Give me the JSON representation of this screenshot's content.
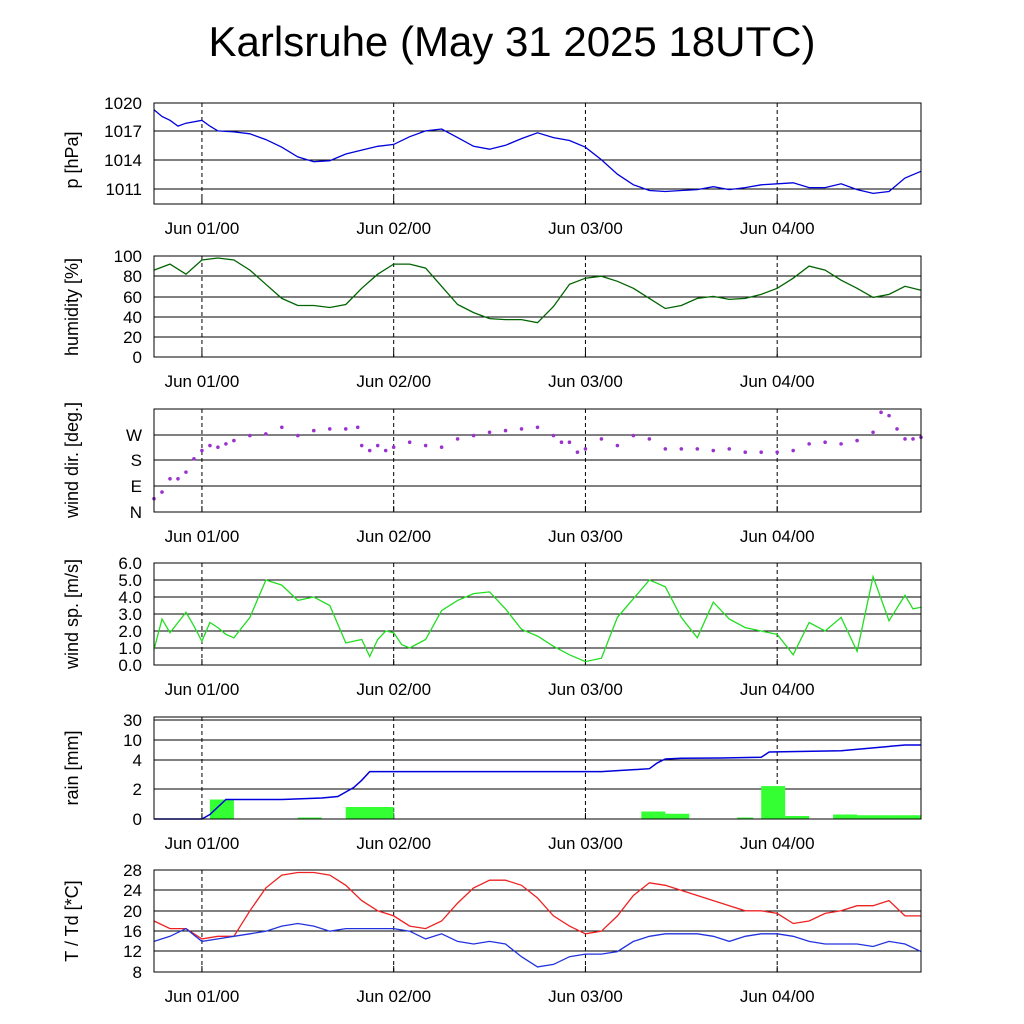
{
  "title": "Karlsruhe (May 31 2025 18UTC)",
  "chart_data": [
    {
      "id": "pressure",
      "type": "line",
      "ylabel": "p [hPa]",
      "color": "#0000dd",
      "yticks": [
        "1020",
        "1017",
        "1014",
        "1011"
      ],
      "ylim": [
        1009.5,
        1020
      ],
      "xlim": [
        -6,
        90
      ],
      "xtick_labels": [
        "Jun 01/00",
        "Jun 02/00",
        "Jun 03/00",
        "Jun 04/00"
      ],
      "x": [
        -6,
        -5,
        -4,
        -3,
        -2,
        0,
        1,
        2,
        4,
        6,
        8,
        10,
        12,
        14,
        16,
        18,
        20,
        22,
        24,
        26,
        28,
        30,
        32,
        34,
        36,
        38,
        40,
        42,
        44,
        46,
        48,
        50,
        52,
        54,
        56,
        58,
        60,
        62,
        64,
        66,
        68,
        70,
        72,
        74,
        76,
        78,
        80,
        82,
        84,
        86,
        88,
        90
      ],
      "y": [
        1019.3,
        1018.6,
        1018.2,
        1017.6,
        1017.9,
        1018.2,
        1017.6,
        1017.1,
        1017.0,
        1016.8,
        1016.2,
        1015.4,
        1014.4,
        1013.9,
        1014.0,
        1014.7,
        1015.1,
        1015.5,
        1015.7,
        1016.5,
        1017.1,
        1017.3,
        1016.4,
        1015.5,
        1015.2,
        1015.6,
        1016.3,
        1016.9,
        1016.4,
        1016.1,
        1015.4,
        1014.1,
        1012.6,
        1011.5,
        1010.9,
        1010.8,
        1010.9,
        1011.0,
        1011.3,
        1011.0,
        1011.2,
        1011.5,
        1011.6,
        1011.7,
        1011.2,
        1011.2,
        1011.6,
        1011.0,
        1010.6,
        1010.8,
        1012.2,
        1012.9
      ]
    },
    {
      "id": "humidity",
      "type": "line",
      "ylabel": "humidity [%]",
      "color": "#006400",
      "yticks": [
        "100",
        "80",
        "60",
        "40",
        "20",
        "0"
      ],
      "ylim": [
        0,
        100
      ],
      "xlim": [
        -6,
        90
      ],
      "xtick_labels": [
        "Jun 01/00",
        "Jun 02/00",
        "Jun 03/00",
        "Jun 04/00"
      ],
      "x": [
        -6,
        -4,
        -2,
        0,
        2,
        4,
        6,
        8,
        10,
        12,
        14,
        16,
        18,
        20,
        22,
        24,
        26,
        28,
        30,
        32,
        34,
        36,
        38,
        40,
        42,
        44,
        46,
        48,
        50,
        52,
        54,
        56,
        58,
        60,
        62,
        64,
        66,
        68,
        70,
        72,
        74,
        76,
        78,
        80,
        82,
        84,
        86,
        88,
        90
      ],
      "y": [
        86,
        92,
        82,
        96,
        98,
        96,
        86,
        72,
        58,
        51,
        51,
        49,
        52,
        68,
        82,
        92,
        92,
        88,
        70,
        52,
        44,
        38,
        37,
        37,
        34,
        50,
        72,
        78,
        80,
        75,
        68,
        58,
        48,
        51,
        58,
        60,
        57,
        58,
        62,
        68,
        78,
        90,
        86,
        76,
        68,
        59,
        62,
        70,
        66
      ]
    },
    {
      "id": "wind_dir",
      "type": "scatter",
      "ylabel": "wind dir. [deg.]",
      "color": "#9a32cd",
      "yticks": [
        "W",
        "S",
        "E",
        "N"
      ],
      "ylim": [
        0,
        310
      ],
      "xlim": [
        -6,
        90
      ],
      "xtick_labels": [
        "Jun 01/00",
        "Jun 02/00",
        "Jun 03/00",
        "Jun 04/00"
      ],
      "x": [
        -6,
        -5,
        -4,
        -3,
        -2,
        -1,
        0,
        1,
        2,
        3,
        4,
        6,
        8,
        10,
        12,
        14,
        16,
        18,
        19.5,
        20,
        21,
        22,
        23,
        24,
        26,
        28,
        30,
        32,
        34,
        36,
        38,
        40,
        42,
        44,
        45,
        46,
        47,
        48,
        50,
        52,
        54,
        56,
        58,
        60,
        62,
        64,
        66,
        68,
        70,
        72,
        74,
        76,
        78,
        80,
        82,
        84,
        85,
        86,
        87,
        88,
        89,
        90
      ],
      "y": [
        40,
        60,
        100,
        100,
        120,
        160,
        185,
        200,
        195,
        205,
        215,
        230,
        235,
        255,
        230,
        245,
        250,
        250,
        255,
        200,
        185,
        200,
        185,
        195,
        210,
        200,
        195,
        220,
        230,
        240,
        245,
        250,
        255,
        230,
        210,
        210,
        180,
        190,
        220,
        200,
        230,
        220,
        190,
        190,
        190,
        185,
        190,
        180,
        180,
        180,
        185,
        205,
        210,
        205,
        215,
        240,
        300,
        290,
        250,
        220,
        220,
        225
      ]
    },
    {
      "id": "wind_sp",
      "type": "line",
      "ylabel": "wind sp. [m/s]",
      "color": "#22dd22",
      "yticks": [
        "6.0",
        "5.0",
        "4.0",
        "3.0",
        "2.0",
        "1.0",
        "0.0"
      ],
      "ylim": [
        0,
        6
      ],
      "xlim": [
        -6,
        90
      ],
      "xtick_labels": [
        "Jun 01/00",
        "Jun 02/00",
        "Jun 03/00",
        "Jun 04/00"
      ],
      "x": [
        -6,
        -5,
        -4,
        -3,
        -2,
        -1,
        0,
        1,
        2,
        3,
        4,
        6,
        8,
        10,
        12,
        14,
        16,
        18,
        20,
        21,
        22,
        23,
        24,
        25,
        26,
        28,
        30,
        32,
        34,
        36,
        38,
        40,
        42,
        44,
        46,
        48,
        50,
        52,
        54,
        56,
        58,
        60,
        62,
        64,
        66,
        68,
        70,
        72,
        74,
        76,
        78,
        80,
        82,
        84,
        86,
        88,
        89,
        90
      ],
      "y": [
        0.9,
        2.7,
        1.9,
        2.5,
        3.1,
        2.3,
        1.4,
        2.5,
        2.2,
        1.8,
        1.6,
        2.8,
        5.0,
        4.7,
        3.8,
        4.0,
        3.5,
        1.3,
        1.5,
        0.5,
        1.5,
        2.0,
        1.9,
        1.2,
        1.0,
        1.5,
        3.2,
        3.8,
        4.2,
        4.3,
        3.3,
        2.1,
        1.7,
        1.1,
        0.6,
        0.2,
        0.4,
        2.8,
        3.9,
        5.0,
        4.6,
        2.8,
        1.6,
        3.7,
        2.7,
        2.2,
        2.0,
        1.8,
        0.6,
        2.5,
        2.0,
        2.8,
        0.8,
        5.2,
        2.6,
        4.1,
        3.3,
        3.4
      ]
    },
    {
      "id": "rain",
      "type": "bar+line",
      "ylabel": "rain [mm]",
      "bar_color": "#33ff33",
      "line_color": "#0000dd",
      "yticks": [
        "30",
        "10",
        "4",
        "2",
        "0"
      ],
      "xlim": [
        -6,
        90
      ],
      "xtick_labels": [
        "Jun 01/00",
        "Jun 02/00",
        "Jun 03/00",
        "Jun 04/00"
      ],
      "bars": [
        {
          "x": [
            1,
            4
          ],
          "value": 1.3
        },
        {
          "x": [
            12,
            15
          ],
          "value": 0.1
        },
        {
          "x": [
            18,
            24
          ],
          "value": 0.8
        },
        {
          "x": [
            55,
            58
          ],
          "value": 0.5
        },
        {
          "x": [
            58,
            61
          ],
          "value": 0.35
        },
        {
          "x": [
            67,
            69
          ],
          "value": 0.1
        },
        {
          "x": [
            70,
            73
          ],
          "value": 2.2
        },
        {
          "x": [
            73,
            76
          ],
          "value": 0.2
        },
        {
          "x": [
            79,
            82
          ],
          "value": 0.3
        },
        {
          "x": [
            82,
            86
          ],
          "value": 0.25
        },
        {
          "x": [
            86,
            90
          ],
          "value": 0.25
        }
      ],
      "cumulative": {
        "x": [
          -6,
          0,
          1,
          3,
          10,
          15,
          17,
          18,
          19,
          20,
          21,
          30,
          40,
          50,
          56,
          57,
          58,
          60,
          65,
          70,
          71,
          80,
          88,
          90
        ],
        "y": [
          0,
          0,
          0.3,
          1.3,
          1.3,
          1.4,
          1.5,
          1.8,
          2.1,
          2.6,
          3.2,
          3.2,
          3.2,
          3.2,
          3.4,
          3.8,
          4.3,
          4.5,
          4.6,
          4.8,
          6.4,
          6.8,
          8.5,
          8.5
        ]
      }
    },
    {
      "id": "temp",
      "type": "line",
      "ylabel": "T / Td [*C]",
      "yticks": [
        "28",
        "24",
        "20",
        "16",
        "12",
        "8"
      ],
      "ylim": [
        8,
        28
      ],
      "xlim": [
        -6,
        90
      ],
      "xtick_labels": [
        "Jun 01/00",
        "Jun 02/00",
        "Jun 03/00",
        "Jun 04/00"
      ],
      "series": [
        {
          "color": "#ee2222",
          "x": [
            -6,
            -4,
            -2,
            0,
            2,
            4,
            6,
            8,
            10,
            12,
            14,
            16,
            18,
            20,
            22,
            24,
            26,
            28,
            30,
            32,
            34,
            36,
            38,
            40,
            42,
            44,
            46,
            48,
            50,
            52,
            54,
            56,
            58,
            60,
            62,
            64,
            66,
            68,
            70,
            72,
            74,
            76,
            78,
            80,
            82,
            84,
            86,
            88,
            90
          ],
          "y": [
            18,
            16.5,
            16.5,
            14.5,
            15,
            15,
            20,
            24.5,
            27,
            27.5,
            27.5,
            27,
            25,
            22,
            20,
            19,
            17,
            16.5,
            18,
            21.5,
            24.5,
            26,
            26,
            25,
            22.5,
            19,
            17,
            15.5,
            16,
            19,
            23,
            25.5,
            25,
            24,
            23,
            22,
            21,
            20,
            20,
            19.5,
            17.5,
            18,
            19.5,
            20,
            21,
            21,
            22,
            19,
            19
          ]
        },
        {
          "color": "#2233dd",
          "x": [
            -6,
            -4,
            -2,
            0,
            2,
            4,
            6,
            8,
            10,
            12,
            14,
            16,
            18,
            20,
            22,
            24,
            26,
            28,
            30,
            32,
            34,
            36,
            38,
            40,
            42,
            44,
            46,
            48,
            50,
            52,
            54,
            56,
            58,
            60,
            62,
            64,
            66,
            68,
            70,
            72,
            74,
            76,
            78,
            80,
            82,
            84,
            86,
            88,
            90
          ],
          "y": [
            14,
            15,
            16.5,
            14,
            14.5,
            15,
            15.5,
            16,
            17,
            17.5,
            17,
            16,
            16.5,
            16.5,
            16.5,
            16.5,
            16,
            14.5,
            15.5,
            14,
            13.5,
            14,
            13.5,
            11,
            9,
            9.5,
            11,
            11.5,
            11.5,
            12,
            14,
            15,
            15.5,
            15.5,
            15.5,
            15,
            14,
            15,
            15.5,
            15.5,
            15,
            14,
            13.5,
            13.5,
            13.5,
            13,
            14,
            13.5,
            12
          ]
        }
      ]
    }
  ]
}
